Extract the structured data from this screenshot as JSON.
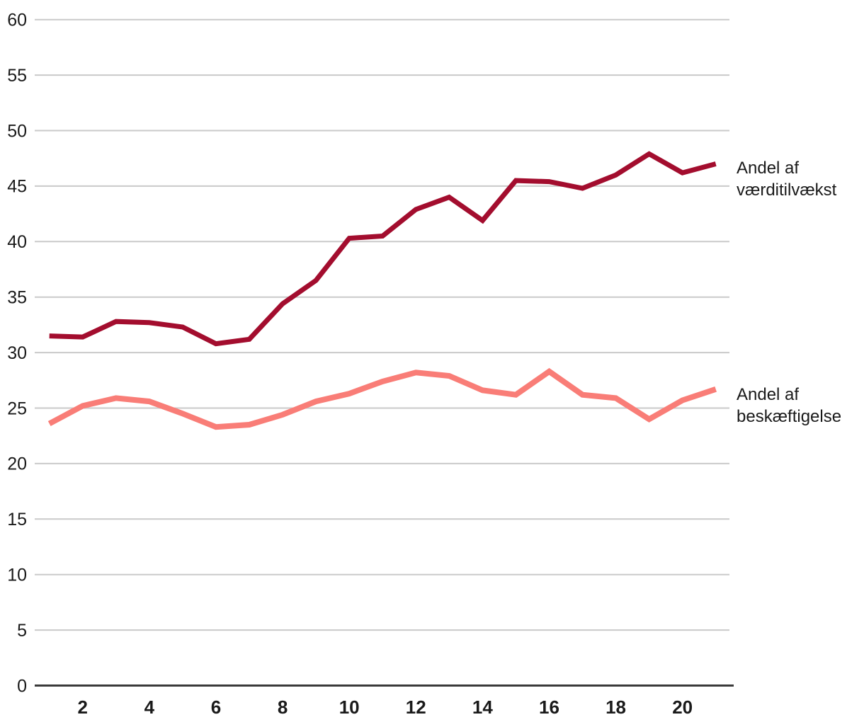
{
  "chart_data": {
    "type": "line",
    "x": [
      1,
      2,
      3,
      4,
      5,
      6,
      7,
      8,
      9,
      10,
      11,
      12,
      13,
      14,
      15,
      16,
      17,
      18,
      19,
      20,
      21
    ],
    "series": [
      {
        "name": "Andel af værditilvækst",
        "label": "Andel af\nværditilvækst",
        "color": "#a30d2e",
        "stroke_width": 7,
        "values": [
          31.5,
          31.4,
          32.8,
          32.7,
          32.3,
          30.8,
          31.2,
          34.4,
          36.5,
          40.3,
          40.5,
          42.9,
          44.0,
          41.9,
          45.5,
          45.4,
          44.8,
          46.0,
          47.9,
          46.2,
          47.0
        ]
      },
      {
        "name": "Andel af beskæftigelse",
        "label": "Andel af\nbeskæftigelse",
        "color": "#f97d77",
        "stroke_width": 8,
        "values": [
          23.6,
          25.2,
          25.9,
          25.6,
          24.5,
          23.3,
          23.5,
          24.4,
          25.6,
          26.3,
          27.4,
          28.2,
          27.9,
          26.6,
          26.2,
          28.3,
          26.2,
          25.9,
          24.0,
          25.7,
          26.7
        ]
      }
    ],
    "title": "",
    "xlabel": "",
    "ylabel": "",
    "ylim": [
      0,
      60
    ],
    "y_tick_step": 5,
    "y_ticks": [
      0,
      5,
      10,
      15,
      20,
      25,
      30,
      35,
      40,
      45,
      50,
      55,
      60
    ],
    "x_ticks": [
      2,
      4,
      6,
      8,
      10,
      12,
      14,
      16,
      18,
      20
    ],
    "grid": true,
    "legend_position": "right-annotations"
  },
  "colors": {
    "gridline": "#cacaca",
    "axis_line": "#3a3a3a",
    "tick_text": "#1a1a1a",
    "background": "#ffffff"
  }
}
